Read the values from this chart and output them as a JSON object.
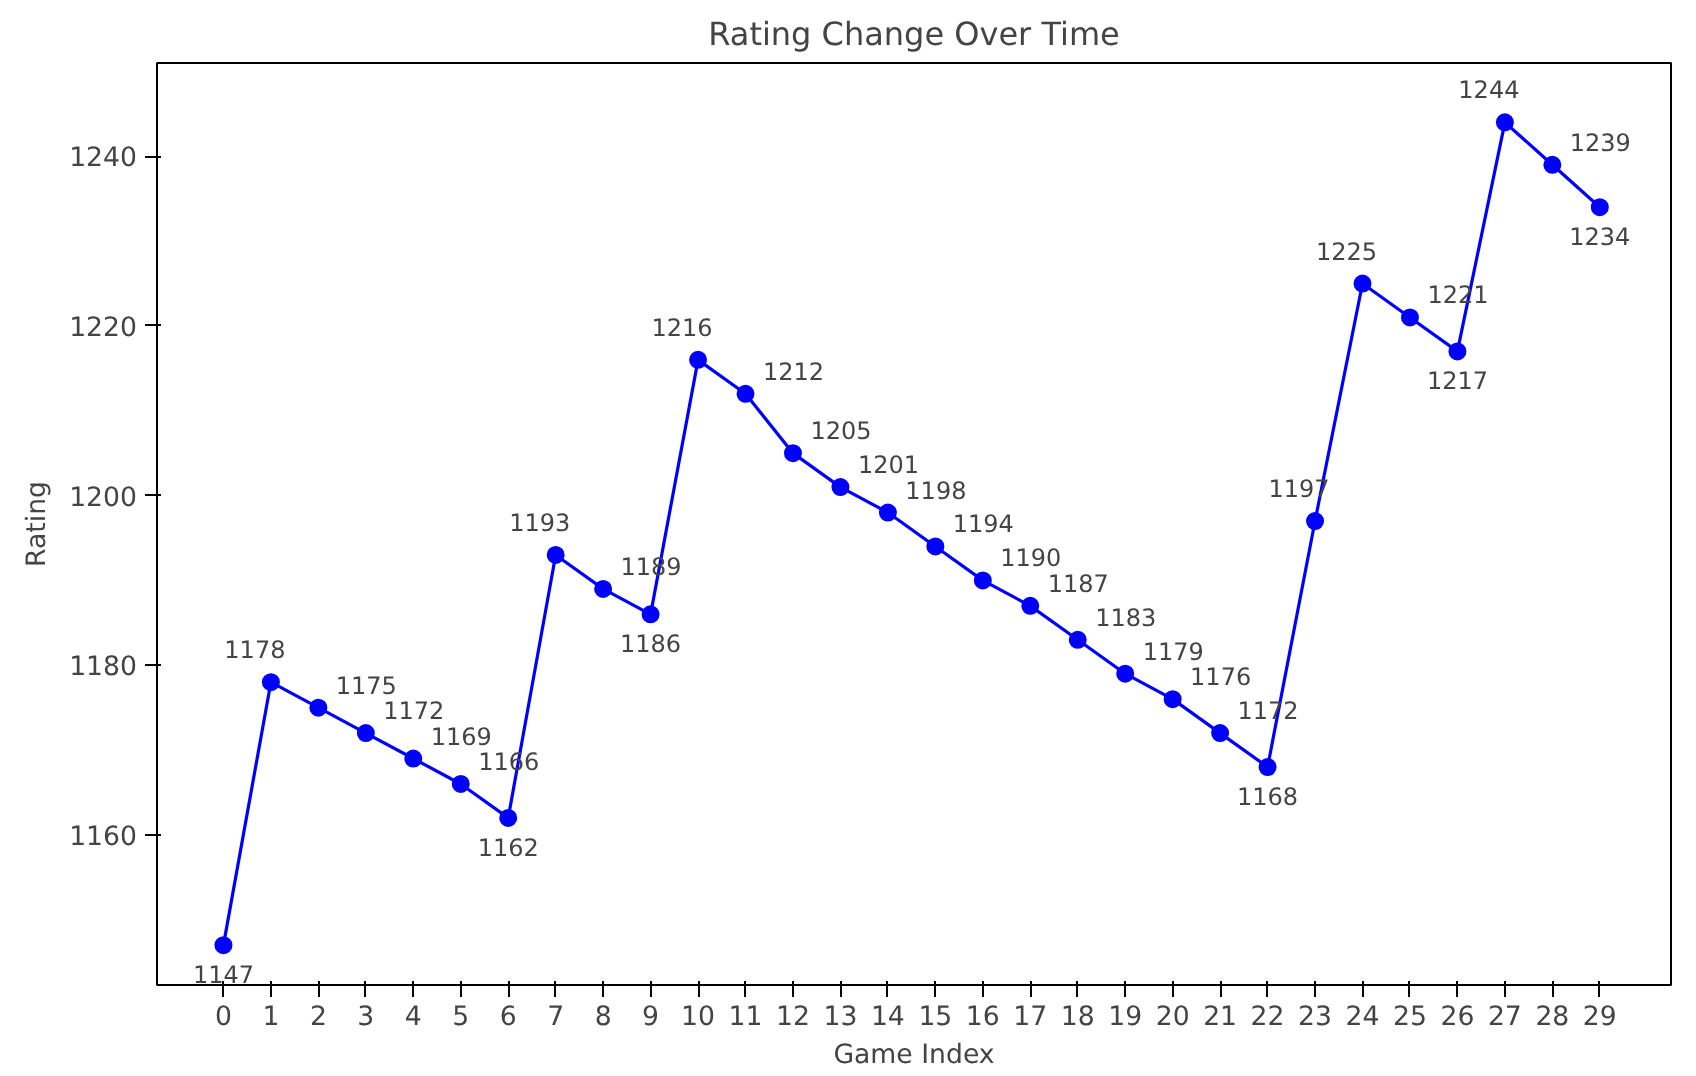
{
  "chart_data": {
    "type": "line",
    "title": "Rating Change Over Time",
    "xlabel": "Game Index",
    "ylabel": "Rating",
    "x": [
      0,
      1,
      2,
      3,
      4,
      5,
      6,
      7,
      8,
      9,
      10,
      11,
      12,
      13,
      14,
      15,
      16,
      17,
      18,
      19,
      20,
      21,
      22,
      23,
      24,
      25,
      26,
      27,
      28,
      29
    ],
    "series": [
      {
        "color": "#0000ff",
        "values": [
          1147,
          1178,
          1175,
          1172,
          1169,
          1166,
          1162,
          1193,
          1189,
          1186,
          1216,
          1212,
          1205,
          1201,
          1198,
          1194,
          1190,
          1187,
          1183,
          1179,
          1176,
          1172,
          1168,
          1197,
          1225,
          1221,
          1217,
          1244,
          1239,
          1234
        ]
      }
    ],
    "xlim": [
      -1.4,
      30.5
    ],
    "ylim": [
      1142.3,
      1251
    ],
    "xticks": [
      0,
      1,
      2,
      3,
      4,
      5,
      6,
      7,
      8,
      9,
      10,
      11,
      12,
      13,
      14,
      15,
      16,
      17,
      18,
      19,
      20,
      21,
      22,
      23,
      24,
      25,
      26,
      27,
      28,
      29
    ],
    "yticks": [
      1160,
      1180,
      1200,
      1220,
      1240
    ],
    "marker": "circle",
    "line_style": "solid",
    "data_labels": true,
    "grid": false
  }
}
